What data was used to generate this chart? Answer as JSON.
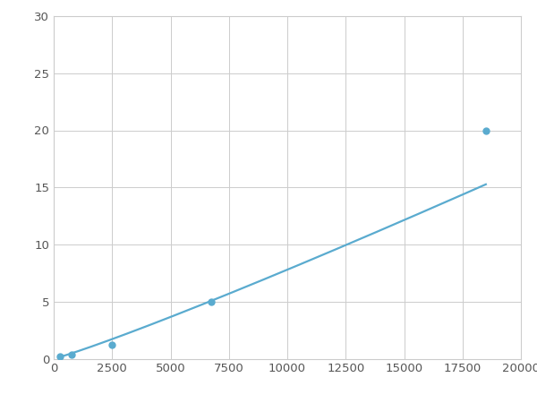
{
  "x": [
    250,
    750,
    2500,
    6750,
    18500
  ],
  "y": [
    0.2,
    0.35,
    1.2,
    5.0,
    20.0
  ],
  "line_color": "#5aabcf",
  "marker_size": 5,
  "line_width": 1.6,
  "xlim": [
    0,
    20000
  ],
  "ylim": [
    0,
    30
  ],
  "xticks": [
    0,
    2500,
    5000,
    7500,
    10000,
    12500,
    15000,
    17500,
    20000
  ],
  "yticks": [
    0,
    5,
    10,
    15,
    20,
    25,
    30
  ],
  "grid_color": "#cccccc",
  "background_color": "#ffffff",
  "tick_label_color": "#555555",
  "tick_label_size": 9.5
}
